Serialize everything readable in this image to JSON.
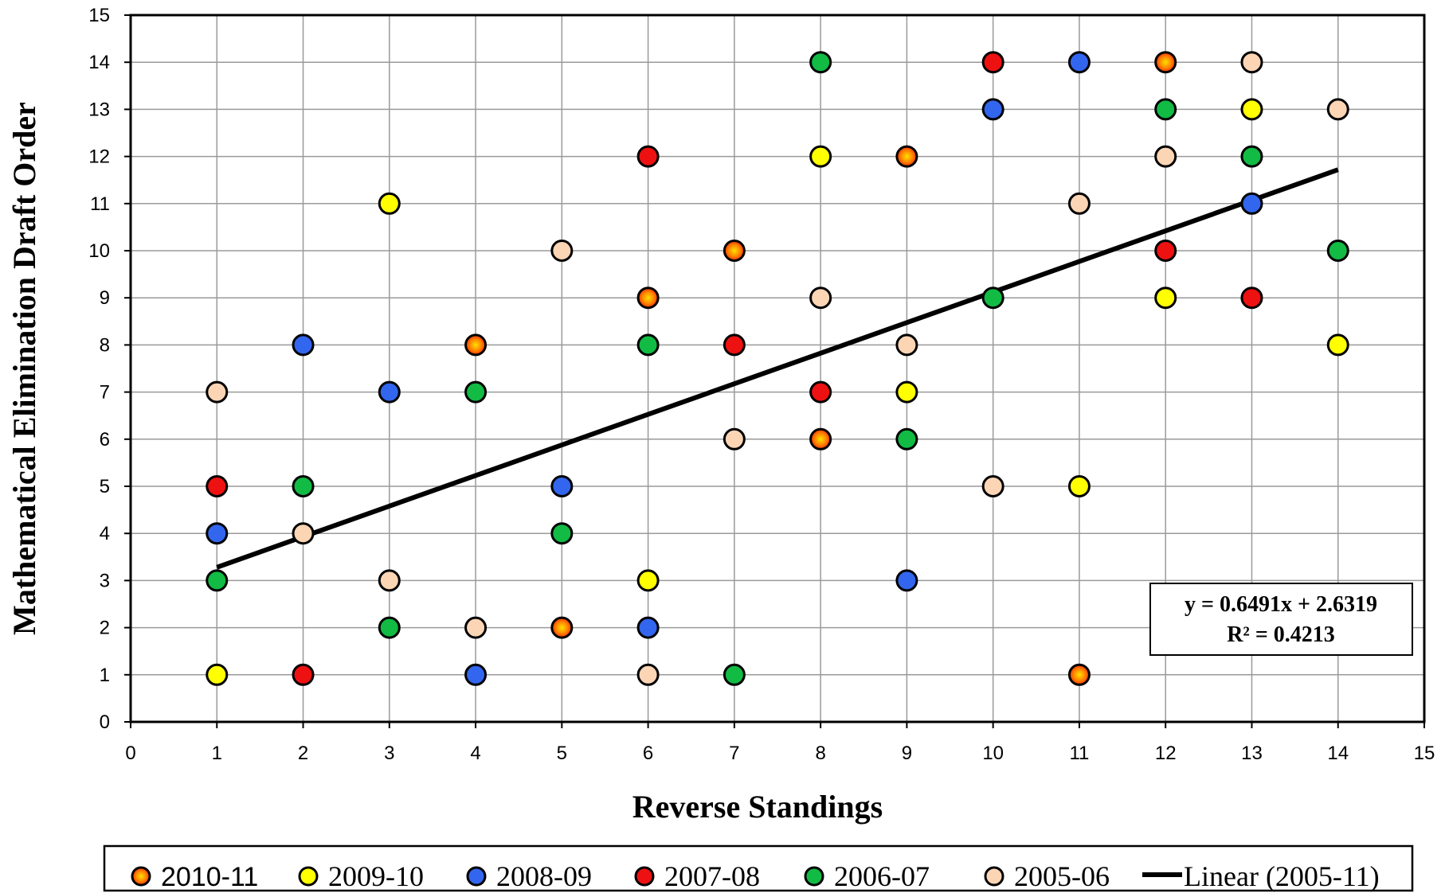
{
  "chart_data": {
    "type": "scatter",
    "xlabel": "Reverse Standings",
    "ylabel": "Mathematical Elimination Draft Order",
    "xlim": [
      0,
      15
    ],
    "ylim": [
      0,
      15
    ],
    "xticks": [
      0,
      1,
      2,
      3,
      4,
      5,
      6,
      7,
      8,
      9,
      10,
      11,
      12,
      13,
      14,
      15
    ],
    "yticks": [
      0,
      1,
      2,
      3,
      4,
      5,
      6,
      7,
      8,
      9,
      10,
      11,
      12,
      13,
      14,
      15
    ],
    "grid": true,
    "legend_position": "bottom",
    "series": [
      {
        "name": "2010-11",
        "color": "#ff3300",
        "glow": "#ffcc00",
        "points": [
          [
            4,
            8
          ],
          [
            5,
            2
          ],
          [
            6,
            9
          ],
          [
            7,
            10
          ],
          [
            8,
            6
          ],
          [
            9,
            12
          ],
          [
            11,
            1
          ],
          [
            12,
            14
          ]
        ]
      },
      {
        "name": "2009-10",
        "color": "#ffff00",
        "points": [
          [
            1,
            1
          ],
          [
            3,
            11
          ],
          [
            6,
            3
          ],
          [
            8,
            12
          ],
          [
            9,
            7
          ],
          [
            11,
            5
          ],
          [
            12,
            9
          ],
          [
            13,
            13
          ],
          [
            14,
            8
          ]
        ]
      },
      {
        "name": "2008-09",
        "color": "#3366ee",
        "points": [
          [
            1,
            4
          ],
          [
            2,
            8
          ],
          [
            3,
            7
          ],
          [
            4,
            1
          ],
          [
            5,
            5
          ],
          [
            6,
            2
          ],
          [
            9,
            3
          ],
          [
            10,
            13
          ],
          [
            11,
            14
          ],
          [
            13,
            11
          ]
        ]
      },
      {
        "name": "2007-08",
        "color": "#ee1111",
        "points": [
          [
            1,
            5
          ],
          [
            2,
            1
          ],
          [
            6,
            12
          ],
          [
            7,
            8
          ],
          [
            8,
            7
          ],
          [
            10,
            14
          ],
          [
            12,
            10
          ],
          [
            13,
            9
          ]
        ]
      },
      {
        "name": "2006-07",
        "color": "#11bb44",
        "points": [
          [
            1,
            3
          ],
          [
            2,
            5
          ],
          [
            3,
            2
          ],
          [
            4,
            7
          ],
          [
            5,
            4
          ],
          [
            6,
            8
          ],
          [
            7,
            1
          ],
          [
            8,
            14
          ],
          [
            9,
            6
          ],
          [
            10,
            9
          ],
          [
            12,
            13
          ],
          [
            13,
            12
          ],
          [
            14,
            10
          ]
        ]
      },
      {
        "name": "2005-06",
        "color": "#fcd5b5",
        "points": [
          [
            1,
            7
          ],
          [
            2,
            4
          ],
          [
            3,
            3
          ],
          [
            4,
            2
          ],
          [
            5,
            10
          ],
          [
            6,
            1
          ],
          [
            7,
            6
          ],
          [
            8,
            9
          ],
          [
            9,
            8
          ],
          [
            10,
            5
          ],
          [
            11,
            11
          ],
          [
            12,
            12
          ],
          [
            13,
            14
          ],
          [
            14,
            13
          ]
        ]
      }
    ],
    "trendline": {
      "name": "Linear (2005-11)",
      "slope": 0.6491,
      "intercept": 2.6319,
      "x_range": [
        1,
        14
      ],
      "color": "#000000",
      "equation_text": "y = 0.6491x + 2.6319",
      "r2_text": "R² = 0.4213"
    }
  }
}
